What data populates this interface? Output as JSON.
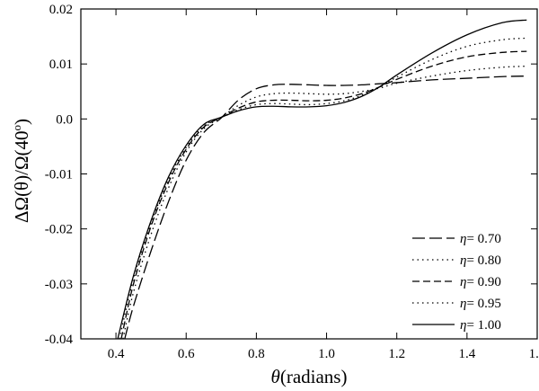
{
  "chart_data": {
    "type": "line",
    "title": "",
    "xlabel": {
      "symbol": "θ",
      "text": "(radians)"
    },
    "ylabel": {
      "main": "ΔΩ(θ)/Ω(40",
      "superscript": "o",
      "close": ")"
    },
    "xlim": [
      0.3,
      1.6
    ],
    "ylim": [
      -0.04,
      0.02
    ],
    "xticks": [
      {
        "value": 0.4,
        "label": "0.4"
      },
      {
        "value": 0.6,
        "label": "0.6"
      },
      {
        "value": 0.8,
        "label": "0.8"
      },
      {
        "value": 1.0,
        "label": "1.0"
      },
      {
        "value": 1.2,
        "label": "1.2"
      },
      {
        "value": 1.4,
        "label": "1.4"
      },
      {
        "value": 1.6,
        "label": "1.6"
      }
    ],
    "yticks": [
      {
        "value": -0.04,
        "label": "-0.04"
      },
      {
        "value": -0.03,
        "label": "-0.03"
      },
      {
        "value": -0.02,
        "label": "-0.02"
      },
      {
        "value": -0.01,
        "label": "-0.01"
      },
      {
        "value": 0.0,
        "label": "0.0"
      },
      {
        "value": 0.01,
        "label": "0.01"
      },
      {
        "value": 0.02,
        "label": "0.02"
      }
    ],
    "grid": false,
    "legend_position": "bottom-right",
    "series": [
      {
        "name": "η= 0.70",
        "dash": "long-dash",
        "x": [
          0.425,
          0.45,
          0.5,
          0.55,
          0.6,
          0.65,
          0.7,
          0.75,
          0.8,
          0.85,
          0.9,
          0.95,
          1.0,
          1.05,
          1.1,
          1.15,
          1.2,
          1.3,
          1.4,
          1.5,
          1.57
        ],
        "y": [
          -0.04,
          -0.034,
          -0.024,
          -0.015,
          -0.0075,
          -0.0025,
          0.0002,
          0.0035,
          0.0055,
          0.0062,
          0.0063,
          0.0062,
          0.0061,
          0.0061,
          0.0062,
          0.0064,
          0.0066,
          0.0071,
          0.0074,
          0.0077,
          0.0078
        ]
      },
      {
        "name": "η= 0.80",
        "dash": "dotted",
        "x": [
          0.42,
          0.45,
          0.5,
          0.55,
          0.6,
          0.65,
          0.7,
          0.75,
          0.8,
          0.85,
          0.9,
          0.95,
          1.0,
          1.05,
          1.1,
          1.15,
          1.2,
          1.3,
          1.4,
          1.5,
          1.57
        ],
        "y": [
          -0.04,
          -0.0315,
          -0.021,
          -0.0125,
          -0.006,
          -0.0018,
          0.0003,
          0.0025,
          0.004,
          0.0046,
          0.0047,
          0.0046,
          0.0045,
          0.0046,
          0.005,
          0.0056,
          0.0065,
          0.0078,
          0.0088,
          0.0094,
          0.0096
        ]
      },
      {
        "name": "η= 0.90",
        "dash": "dashed",
        "x": [
          0.415,
          0.45,
          0.5,
          0.55,
          0.6,
          0.65,
          0.7,
          0.75,
          0.8,
          0.85,
          0.9,
          0.95,
          1.0,
          1.05,
          1.1,
          1.15,
          1.2,
          1.3,
          1.4,
          1.5,
          1.57
        ],
        "y": [
          -0.04,
          -0.03,
          -0.0195,
          -0.0115,
          -0.0055,
          -0.0015,
          0.0003,
          0.002,
          0.0031,
          0.0034,
          0.0034,
          0.0033,
          0.0034,
          0.0038,
          0.0046,
          0.0058,
          0.0072,
          0.0096,
          0.0113,
          0.0121,
          0.0123
        ]
      },
      {
        "name": "η= 0.95",
        "dash": "dotted",
        "x": [
          0.41,
          0.45,
          0.5,
          0.55,
          0.6,
          0.65,
          0.7,
          0.75,
          0.8,
          0.85,
          0.9,
          0.95,
          1.0,
          1.05,
          1.1,
          1.15,
          1.2,
          1.3,
          1.4,
          1.5,
          1.57
        ],
        "y": [
          -0.04,
          -0.029,
          -0.019,
          -0.011,
          -0.0052,
          -0.0013,
          0.0003,
          0.0017,
          0.0026,
          0.0028,
          0.0027,
          0.0026,
          0.0028,
          0.0033,
          0.0043,
          0.0058,
          0.0076,
          0.0108,
          0.0132,
          0.0144,
          0.0147
        ]
      },
      {
        "name": "η= 1.00",
        "dash": "solid",
        "x": [
          0.405,
          0.45,
          0.5,
          0.55,
          0.6,
          0.65,
          0.7,
          0.75,
          0.8,
          0.85,
          0.9,
          0.95,
          1.0,
          1.05,
          1.1,
          1.15,
          1.2,
          1.3,
          1.4,
          1.5,
          1.57
        ],
        "y": [
          -0.04,
          -0.0285,
          -0.0185,
          -0.0105,
          -0.0048,
          -0.001,
          0.0003,
          0.0015,
          0.0022,
          0.0023,
          0.0022,
          0.0022,
          0.0024,
          0.003,
          0.0041,
          0.0058,
          0.008,
          0.012,
          0.0153,
          0.0175,
          0.018
        ]
      }
    ]
  }
}
